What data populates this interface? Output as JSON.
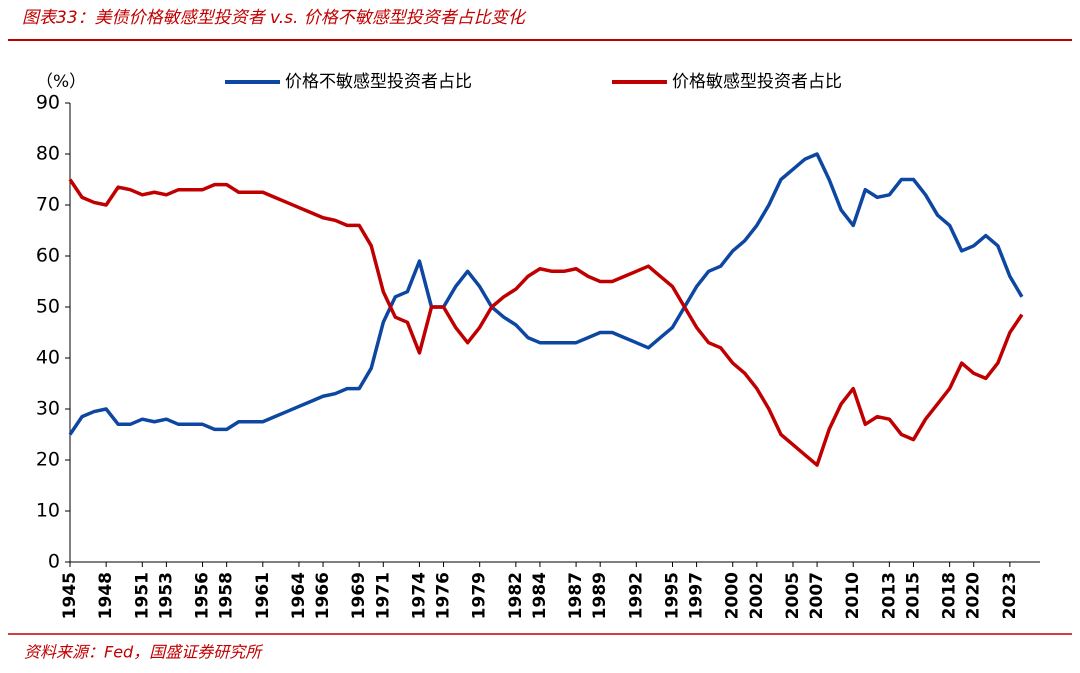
{
  "chart_data": {
    "type": "line",
    "title": "图表33：美债价格敏感型投资者 v.s. 价格不敏感型投资者占比变化",
    "source": "资料来源：Fed，国盛证券研究所",
    "y_label": "（%）",
    "x": [
      1945,
      1946,
      1947,
      1948,
      1949,
      1950,
      1951,
      1952,
      1953,
      1954,
      1955,
      1956,
      1957,
      1958,
      1959,
      1960,
      1961,
      1962,
      1963,
      1964,
      1965,
      1966,
      1967,
      1968,
      1969,
      1970,
      1971,
      1972,
      1973,
      1974,
      1975,
      1976,
      1977,
      1978,
      1979,
      1980,
      1981,
      1982,
      1983,
      1984,
      1985,
      1986,
      1987,
      1988,
      1989,
      1990,
      1991,
      1992,
      1993,
      1994,
      1995,
      1996,
      1997,
      1998,
      1999,
      2000,
      2001,
      2002,
      2003,
      2004,
      2005,
      2006,
      2007,
      2008,
      2009,
      2010,
      2011,
      2012,
      2013,
      2014,
      2015,
      2016,
      2017,
      2018,
      2019,
      2020,
      2021,
      2022,
      2023,
      2024
    ],
    "series": [
      {
        "name": "价格不敏感型投资者占比",
        "color": "#0d47a1",
        "values": [
          25,
          28.5,
          29.5,
          30,
          27,
          27,
          28,
          27.5,
          28,
          27,
          27,
          27,
          26,
          26,
          27.5,
          27.5,
          27.5,
          28.5,
          29.5,
          30.5,
          31.5,
          32.5,
          33,
          34,
          34,
          38,
          47,
          52,
          53,
          59,
          50,
          50,
          54,
          57,
          54,
          50,
          48,
          46.5,
          44,
          43,
          43,
          43,
          43,
          44,
          45,
          45,
          44,
          43,
          42,
          44,
          46,
          50,
          54,
          57,
          58,
          61,
          63,
          66,
          70,
          75,
          77,
          79,
          80,
          75,
          69,
          66,
          73,
          71.5,
          72,
          75,
          75,
          72,
          68,
          66,
          61,
          62,
          64,
          62,
          56,
          52
        ]
      },
      {
        "name": "价格敏感型投资者占比",
        "color": "#c00000",
        "values": [
          75,
          71.5,
          70.5,
          70,
          73.5,
          73,
          72,
          72.5,
          72,
          73,
          73,
          73,
          74,
          74,
          72.5,
          72.5,
          72.5,
          71.5,
          70.5,
          69.5,
          68.5,
          67.5,
          67,
          66,
          66,
          62,
          53,
          48,
          47,
          41,
          50,
          50,
          46,
          43,
          46,
          50,
          52,
          53.5,
          56,
          57.5,
          57,
          57,
          57.5,
          56,
          55,
          55,
          56,
          57,
          58,
          56,
          54,
          50,
          46,
          43,
          42,
          39,
          37,
          34,
          30,
          25,
          23,
          21,
          19,
          26,
          31,
          34,
          27,
          28.5,
          28,
          25,
          24,
          28,
          31,
          34,
          39,
          37,
          36,
          39,
          45,
          48.5
        ]
      }
    ],
    "xlim": [
      1945,
      2025.5
    ],
    "xticks": [
      1945,
      1948,
      1951,
      1953,
      1956,
      1958,
      1961,
      1964,
      1966,
      1969,
      1971,
      1974,
      1976,
      1979,
      1982,
      1984,
      1987,
      1989,
      1992,
      1995,
      1997,
      2000,
      2002,
      2005,
      2007,
      2010,
      2013,
      2015,
      2018,
      2020,
      2023
    ],
    "ylim": [
      0,
      90
    ],
    "yticks": [
      0,
      10,
      20,
      30,
      40,
      50,
      60,
      70,
      80,
      90
    ],
    "legend": "top"
  }
}
